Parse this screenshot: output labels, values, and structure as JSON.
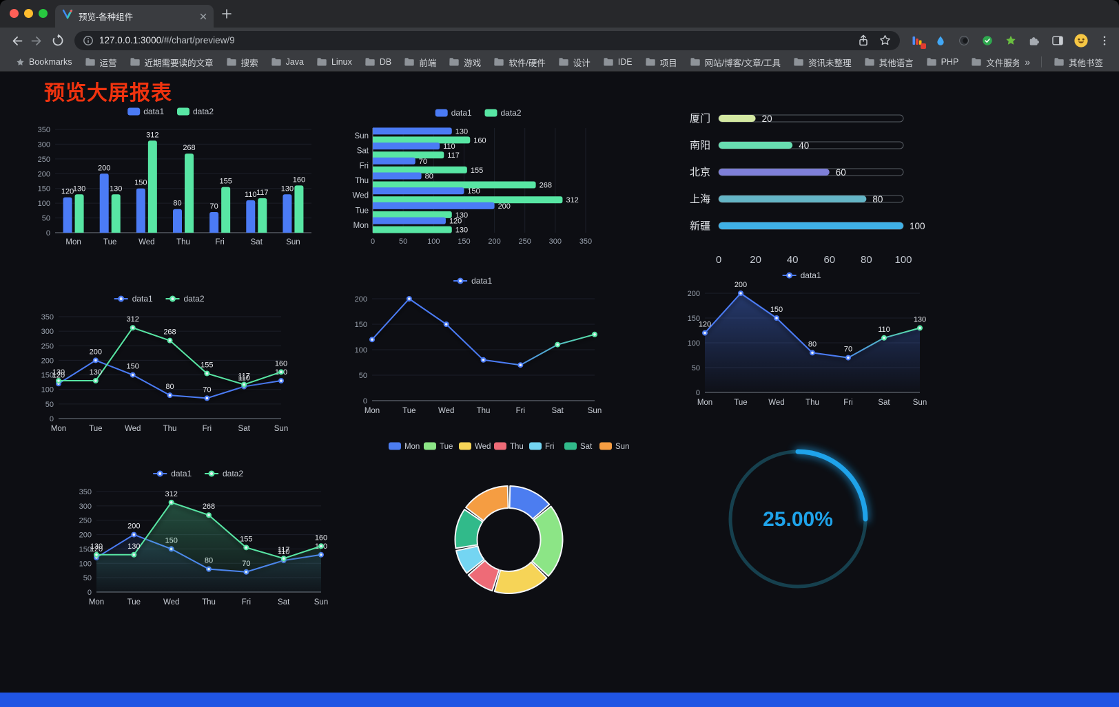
{
  "browser": {
    "tab": {
      "title": "预览-各种组件"
    },
    "url": {
      "host": "127.0.0.1:3000",
      "path": "/#/chart/preview/9"
    },
    "traffic_lights": {
      "close": "#ff5f57",
      "minimize": "#febc2e",
      "zoom": "#28c840"
    }
  },
  "bookmarks_bar": {
    "first": "Bookmarks",
    "folders": [
      "运营",
      "近期需要读的文章",
      "搜索",
      "Java",
      "Linux",
      "DB",
      "前端",
      "游戏",
      "软件/硬件",
      "设计",
      "IDE",
      "项目",
      "网站/博客/文章/工具",
      "资讯未整理",
      "其他语言",
      "PHP",
      "文件服务器"
    ],
    "overflow": "»",
    "other_bookmarks": "其他书签"
  },
  "page": {
    "title": "预览大屏报表",
    "title_color": "#f0330f",
    "background": "#0d0e13",
    "footer_color": "#2055e4"
  },
  "chart_data": [
    {
      "type": "bar",
      "categories": [
        "Mon",
        "Tue",
        "Wed",
        "Thu",
        "Fri",
        "Sat",
        "Sun"
      ],
      "series": [
        {
          "name": "data1",
          "values": [
            120,
            200,
            150,
            80,
            70,
            110,
            130
          ],
          "color": "#4b7bf5"
        },
        {
          "name": "data2",
          "values": [
            130,
            130,
            312,
            268,
            155,
            117,
            160
          ],
          "color": "#58e6a4"
        }
      ],
      "ylim": [
        0,
        350
      ],
      "ytick": 50,
      "labels": true
    },
    {
      "type": "hbar",
      "categories": [
        "Mon",
        "Tue",
        "Wed",
        "Thu",
        "Fri",
        "Sat",
        "Sun"
      ],
      "series": [
        {
          "name": "data1",
          "values": [
            120,
            200,
            150,
            80,
            70,
            110,
            130
          ],
          "color": "#4b7bf5"
        },
        {
          "name": "data2",
          "values": [
            130,
            130,
            312,
            268,
            155,
            117,
            160
          ],
          "color": "#58e6a4"
        }
      ],
      "xlim": [
        0,
        350
      ],
      "xtick": 50,
      "labels": true
    },
    {
      "type": "progress",
      "max": 100,
      "xticks": [
        0,
        20,
        40,
        60,
        80,
        100
      ],
      "items": [
        {
          "label": "厦门",
          "value": 20,
          "color": "#d3e8a2"
        },
        {
          "label": "南阳",
          "value": 40,
          "color": "#68ddb1"
        },
        {
          "label": "北京",
          "value": 60,
          "color": "#7e7fd8"
        },
        {
          "label": "上海",
          "value": 80,
          "color": "#64b5c6"
        },
        {
          "label": "新疆",
          "value": 100,
          "color": "#3fb0e6"
        }
      ]
    },
    {
      "type": "line",
      "categories": [
        "Mon",
        "Tue",
        "Wed",
        "Thu",
        "Fri",
        "Sat",
        "Sun"
      ],
      "series": [
        {
          "name": "data1",
          "values": [
            120,
            200,
            150,
            80,
            70,
            110,
            130
          ],
          "color": "#4b7bf5"
        },
        {
          "name": "data2",
          "values": [
            130,
            130,
            312,
            268,
            155,
            117,
            160
          ],
          "color": "#58e6a4"
        }
      ],
      "ylim": [
        0,
        350
      ],
      "ytick": 50,
      "labels": true
    },
    {
      "type": "line",
      "categories": [
        "Mon",
        "Tue",
        "Wed",
        "Thu",
        "Fri",
        "Sat",
        "Sun"
      ],
      "series": [
        {
          "name": "data1",
          "values": [
            120,
            200,
            150,
            80,
            70,
            110,
            130
          ],
          "color": "#4b7bf5",
          "gradient": [
            "#4b7bf5",
            "#58e6a4"
          ]
        }
      ],
      "ylim": [
        0,
        200
      ],
      "ytick": 50,
      "labels": false
    },
    {
      "type": "line",
      "categories": [
        "Mon",
        "Tue",
        "Wed",
        "Thu",
        "Fri",
        "Sat",
        "Sun"
      ],
      "series": [
        {
          "name": "data1",
          "values": [
            120,
            200,
            150,
            80,
            70,
            110,
            130
          ],
          "color": "#4b7bf5",
          "gradient": [
            "#4b7bf5",
            "#58e6a4"
          ],
          "area": true,
          "area_opacity": 0.4
        }
      ],
      "ylim": [
        0,
        200
      ],
      "ytick": 50,
      "labels": true
    },
    {
      "type": "line",
      "categories": [
        "Mon",
        "Tue",
        "Wed",
        "Thu",
        "Fri",
        "Sat",
        "Sun"
      ],
      "series": [
        {
          "name": "data1",
          "values": [
            120,
            200,
            150,
            80,
            70,
            110,
            130
          ],
          "color": "#4b7bf5",
          "area": true,
          "area_opacity": 0.15
        },
        {
          "name": "data2",
          "values": [
            130,
            130,
            312,
            268,
            155,
            117,
            160
          ],
          "color": "#58e6a4",
          "area": true,
          "area_opacity": 0.3
        }
      ],
      "ylim": [
        0,
        350
      ],
      "ytick": 50,
      "labels": true
    },
    {
      "type": "pie",
      "legend": [
        "Mon",
        "Tue",
        "Wed",
        "Thu",
        "Fri",
        "Sat",
        "Sun"
      ],
      "values": [
        120,
        200,
        150,
        80,
        70,
        110,
        130
      ],
      "colors": [
        "#4c7df0",
        "#8ce586",
        "#f6d457",
        "#ee6b77",
        "#74d5f2",
        "#31ba8a",
        "#f59d42"
      ],
      "outer_r": 78,
      "inner_r": 46
    },
    {
      "type": "gauge",
      "value": 25,
      "label": "25.00%",
      "color": "#1fa3ea",
      "track_color": "#16404e"
    }
  ]
}
